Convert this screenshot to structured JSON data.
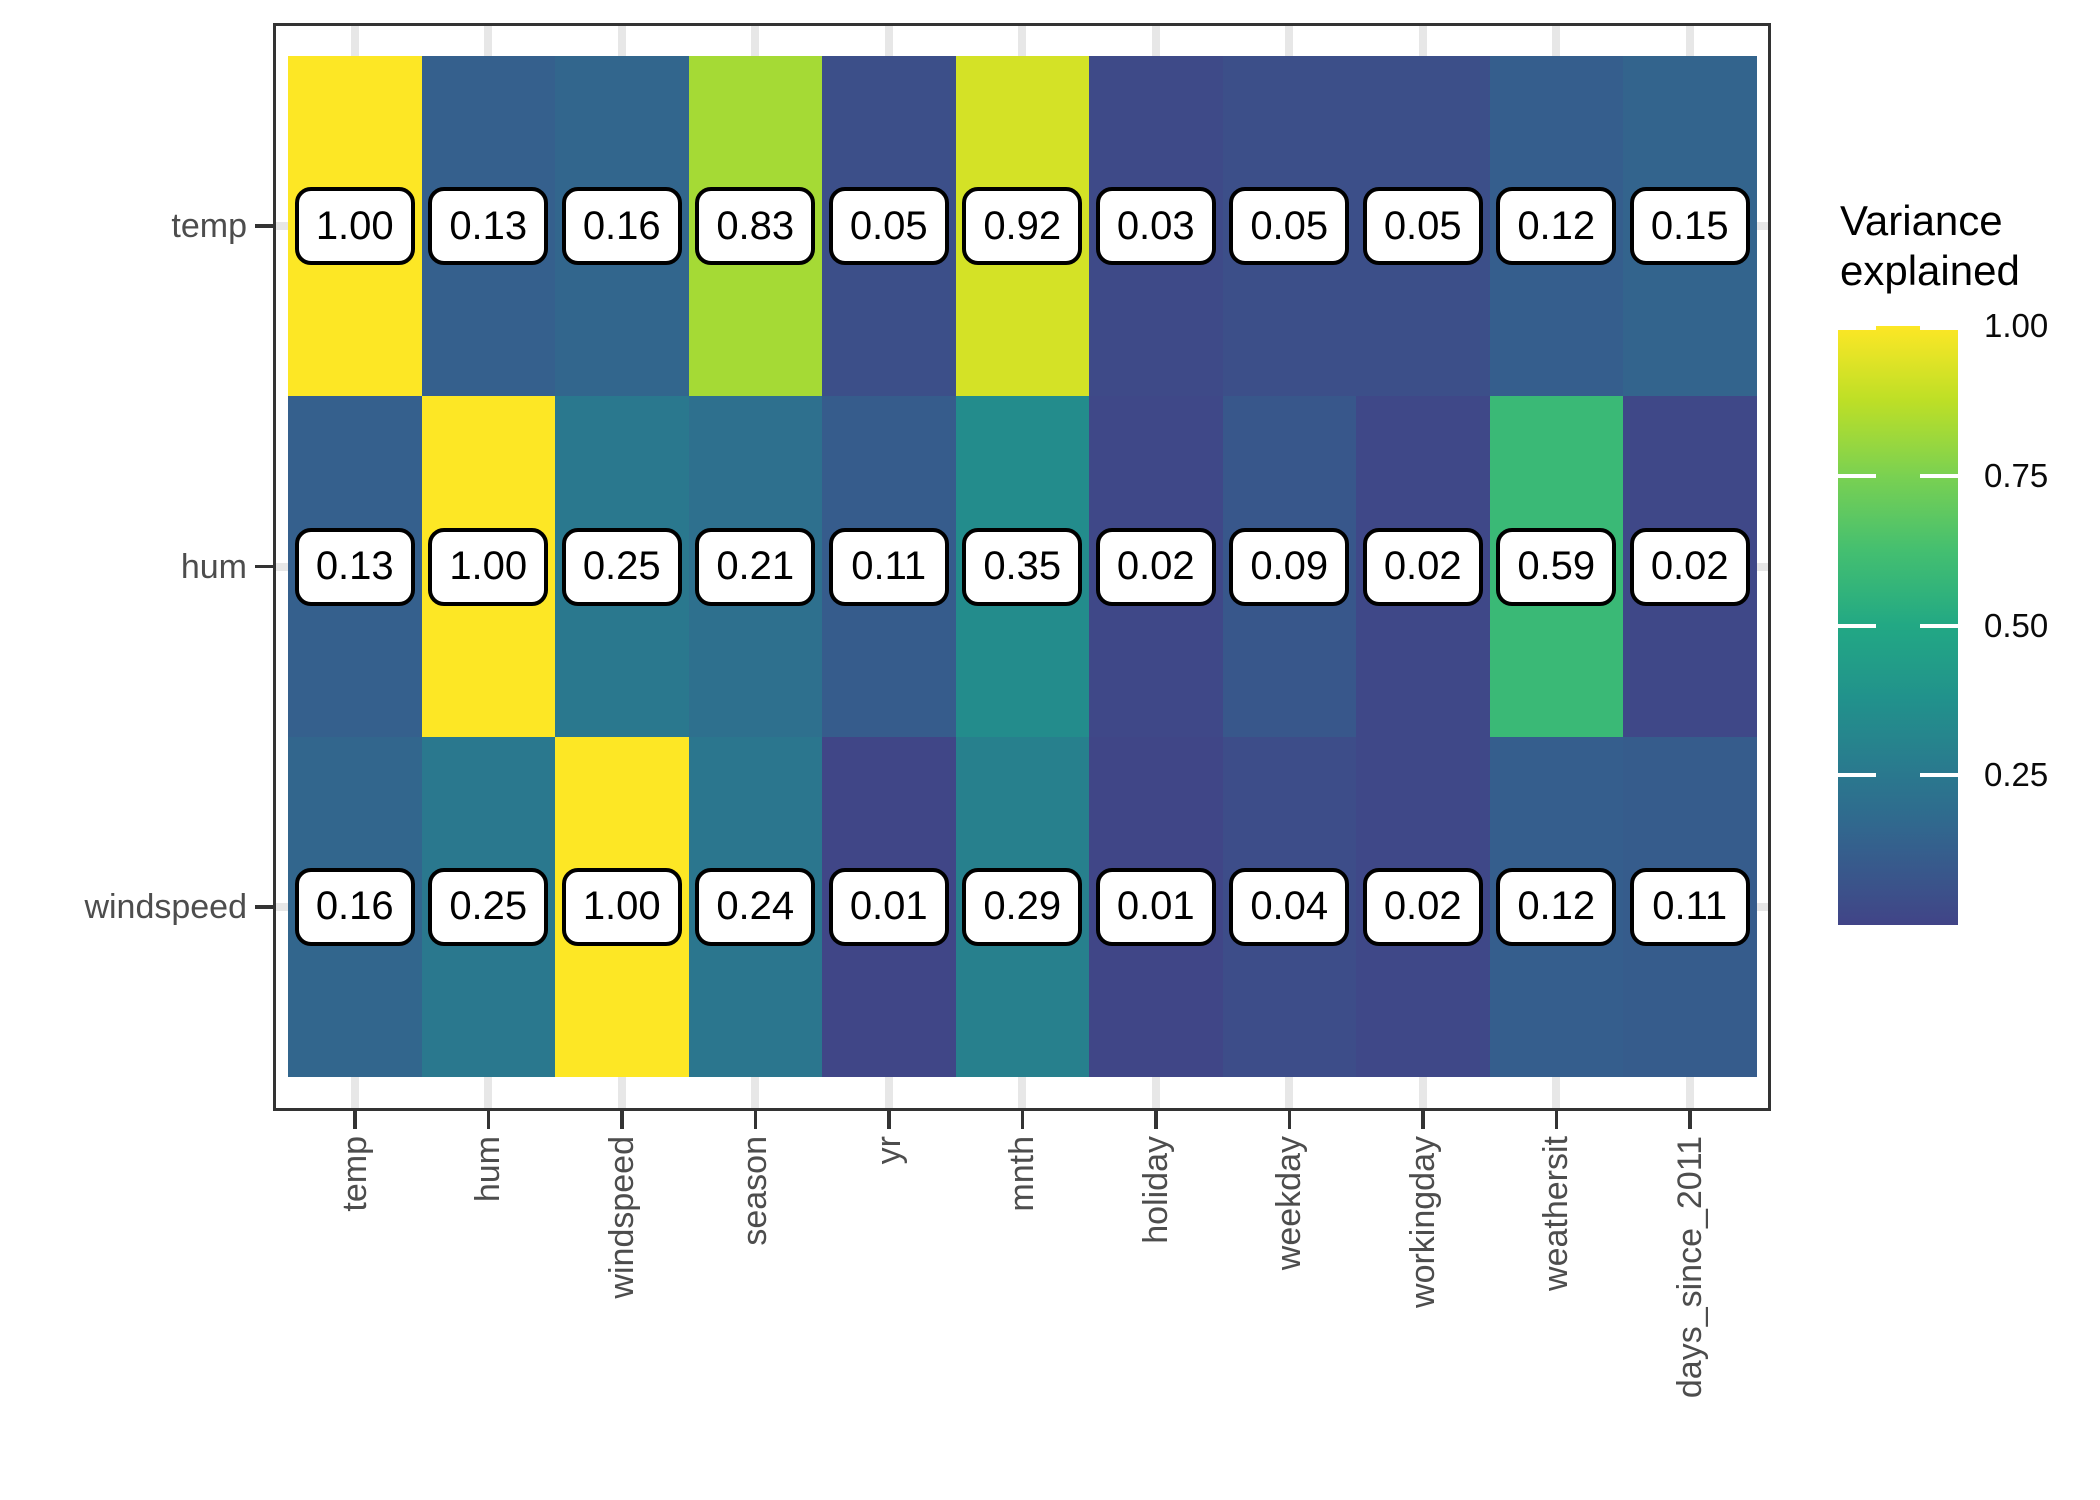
{
  "chart_data": {
    "type": "heatmap",
    "title": "",
    "x_categories": [
      "temp",
      "hum",
      "windspeed",
      "season",
      "yr",
      "mnth",
      "holiday",
      "weekday",
      "workingday",
      "weathersit",
      "days_since_2011"
    ],
    "y_categories": [
      "temp",
      "hum",
      "windspeed"
    ],
    "values": [
      [
        1.0,
        0.13,
        0.16,
        0.83,
        0.05,
        0.92,
        0.03,
        0.05,
        0.05,
        0.12,
        0.15
      ],
      [
        0.13,
        1.0,
        0.25,
        0.21,
        0.11,
        0.35,
        0.02,
        0.09,
        0.02,
        0.59,
        0.02
      ],
      [
        0.16,
        0.25,
        1.0,
        0.24,
        0.01,
        0.29,
        0.01,
        0.04,
        0.02,
        0.12,
        0.11
      ]
    ],
    "value_label_format": "0.00",
    "legend_title": "Variance explained",
    "legend_ticks": [
      1.0,
      0.75,
      0.5,
      0.25
    ],
    "legend_range": [
      0.0,
      1.0
    ],
    "grid": true,
    "legend_position": "right",
    "colorscale": {
      "name": "viridis",
      "begin": 0.2,
      "end": 1.0,
      "anchors": [
        "#440154",
        "#482475",
        "#414487",
        "#355F8D",
        "#2A788E",
        "#21918C",
        "#22A884",
        "#44BF70",
        "#7AD151",
        "#BDDF26",
        "#FDE725"
      ]
    },
    "style_colors": {
      "panel_border": "#333333",
      "gridline": "#E7E7E7",
      "axis_text": "#4D4D4D",
      "cell_label_bg": "#FFFFFF",
      "cell_label_border": "#000000",
      "legend_tick": "#FFFFFF"
    }
  }
}
